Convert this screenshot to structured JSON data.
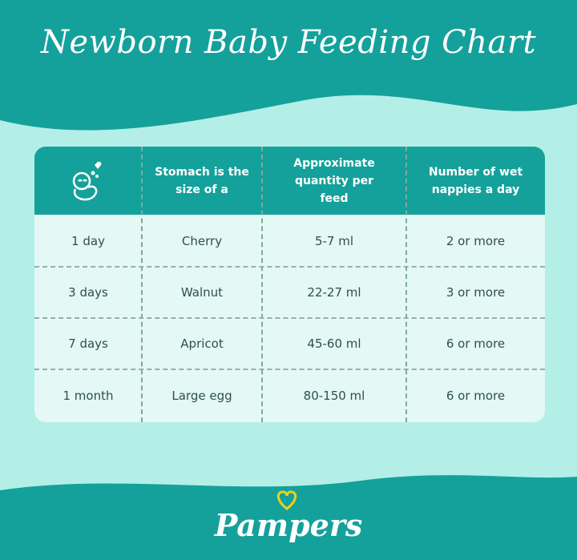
{
  "title": "Newborn Baby Feeding Chart",
  "colors": {
    "teal": "#14a19b",
    "mint": "#b3efe7",
    "table_body": "#e4f8f5",
    "logo_heart": "#e8d21a"
  },
  "table": {
    "header_icon": "baby-with-hearts-icon",
    "headers": [
      "",
      "Stomach is the size of a",
      "Approximate quantity per feed",
      "Number of wet nappies a day"
    ],
    "rows": [
      [
        "1 day",
        "Cherry",
        "5-7 ml",
        "2 or more"
      ],
      [
        "3 days",
        "Walnut",
        "22-27 ml",
        "3 or more"
      ],
      [
        "7 days",
        "Apricot",
        "45-60 ml",
        "6 or more"
      ],
      [
        "1 month",
        "Large egg",
        "80-150 ml",
        "6 or more"
      ]
    ]
  },
  "logo": "Pampers"
}
